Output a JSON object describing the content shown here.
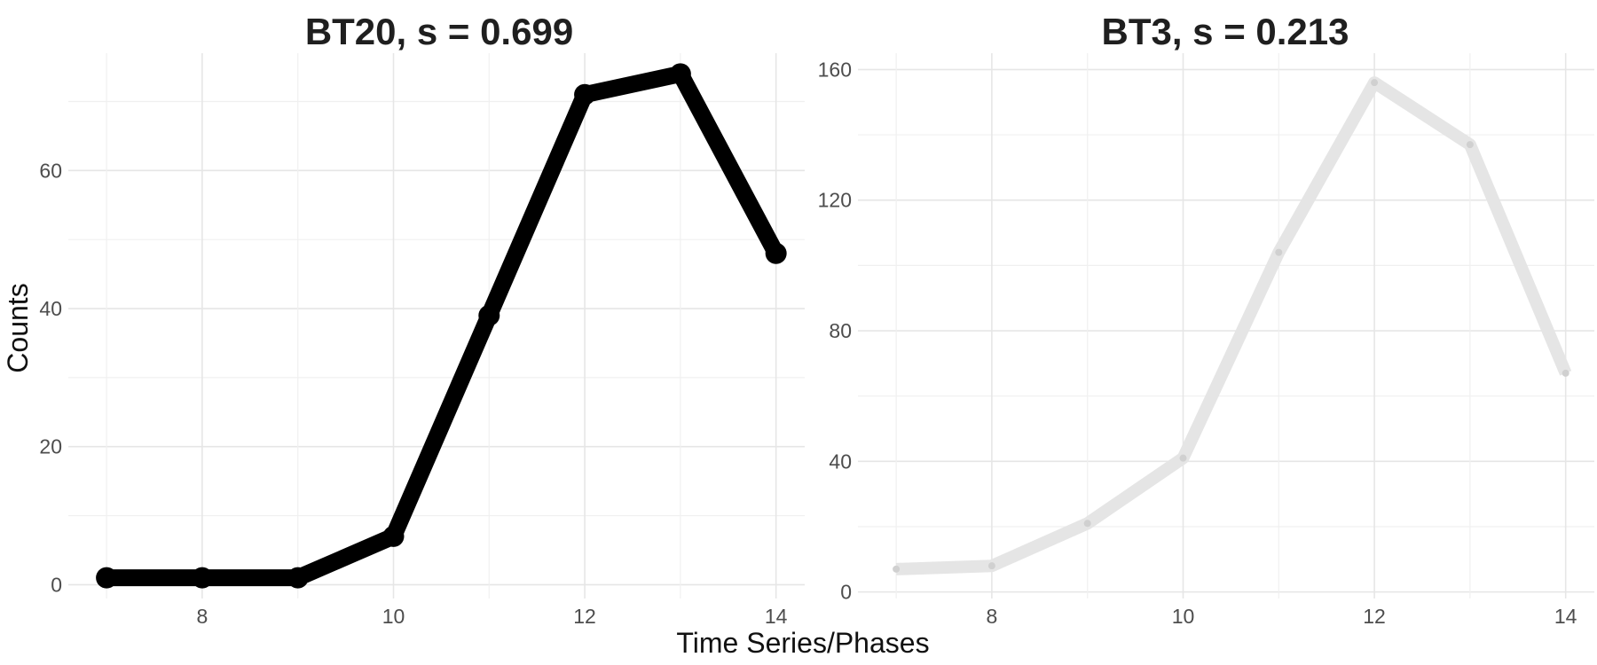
{
  "chart_data": [
    {
      "type": "line",
      "title": "BT20, s = 0.699",
      "x": [
        7,
        8,
        9,
        10,
        11,
        12,
        13,
        14
      ],
      "values": [
        1,
        1,
        1,
        7,
        39,
        71,
        74,
        48
      ],
      "xlim": [
        6.6,
        14.3
      ],
      "ylim": [
        -2,
        77
      ],
      "xticks": [
        "8",
        "10",
        "12",
        "14"
      ],
      "yticks": [
        "0",
        "20",
        "40",
        "60"
      ],
      "color": "#000000",
      "grid": true
    },
    {
      "type": "line",
      "title": "BT3, s = 0.213",
      "x": [
        7,
        8,
        9,
        10,
        11,
        12,
        13,
        14
      ],
      "values": [
        7,
        8,
        21,
        41,
        104,
        156,
        137,
        67
      ],
      "xlim": [
        6.6,
        14.3
      ],
      "ylim": [
        -2,
        165
      ],
      "xticks": [
        "8",
        "10",
        "12",
        "14"
      ],
      "yticks": [
        "0",
        "40",
        "80",
        "120",
        "160"
      ],
      "color": "#e5e5e5",
      "grid": true
    }
  ],
  "xlabel": "Time Series/Phases",
  "ylabel": "Counts"
}
